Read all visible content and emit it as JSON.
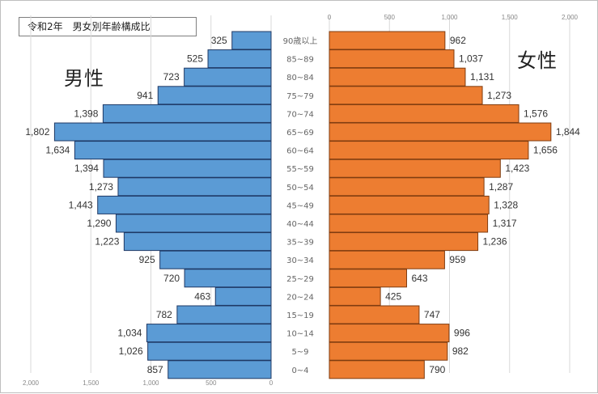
{
  "title": "令和2年　男女別年齢構成比",
  "male_label": "男性",
  "female_label": "女性",
  "chart_data": {
    "type": "bar",
    "orientation": "horizontal-pyramid",
    "categories": [
      "90歳以上",
      "85~89",
      "80~84",
      "75~79",
      "70~74",
      "65~69",
      "60~64",
      "55~59",
      "50~54",
      "45~49",
      "40~44",
      "35~39",
      "30~34",
      "25~29",
      "20~24",
      "15~19",
      "10~14",
      "5~9",
      "0~4"
    ],
    "series": [
      {
        "name": "男性",
        "color": "#5b9bd5",
        "values": [
          325,
          525,
          723,
          941,
          1398,
          1802,
          1634,
          1394,
          1273,
          1443,
          1290,
          1223,
          925,
          720,
          463,
          782,
          1034,
          1026,
          857
        ],
        "value_labels": [
          "325",
          "525",
          "723",
          "941",
          "1,398",
          "1,802",
          "1,634",
          "1,394",
          "1,273",
          "1,443",
          "1,290",
          "1,223",
          "925",
          "720",
          "463",
          "782",
          "1,034",
          "1,026",
          "857"
        ]
      },
      {
        "name": "女性",
        "color": "#ed7d31",
        "values": [
          962,
          1037,
          1131,
          1273,
          1576,
          1844,
          1656,
          1423,
          1287,
          1328,
          1317,
          1236,
          959,
          643,
          425,
          747,
          996,
          982,
          790
        ],
        "value_labels": [
          "962",
          "1,037",
          "1,131",
          "1,273",
          "1,576",
          "1,844",
          "1,656",
          "1,423",
          "1,287",
          "1,328",
          "1,317",
          "1,236",
          "959",
          "643",
          "425",
          "747",
          "996",
          "982",
          "790"
        ]
      }
    ],
    "male_ticks": [
      "2,000",
      "1,500",
      "1,000",
      "500",
      "0"
    ],
    "female_ticks": [
      "0",
      "500",
      "1,000",
      "1,500",
      "2,000"
    ],
    "xlim": [
      0,
      2000
    ],
    "grid": true
  }
}
